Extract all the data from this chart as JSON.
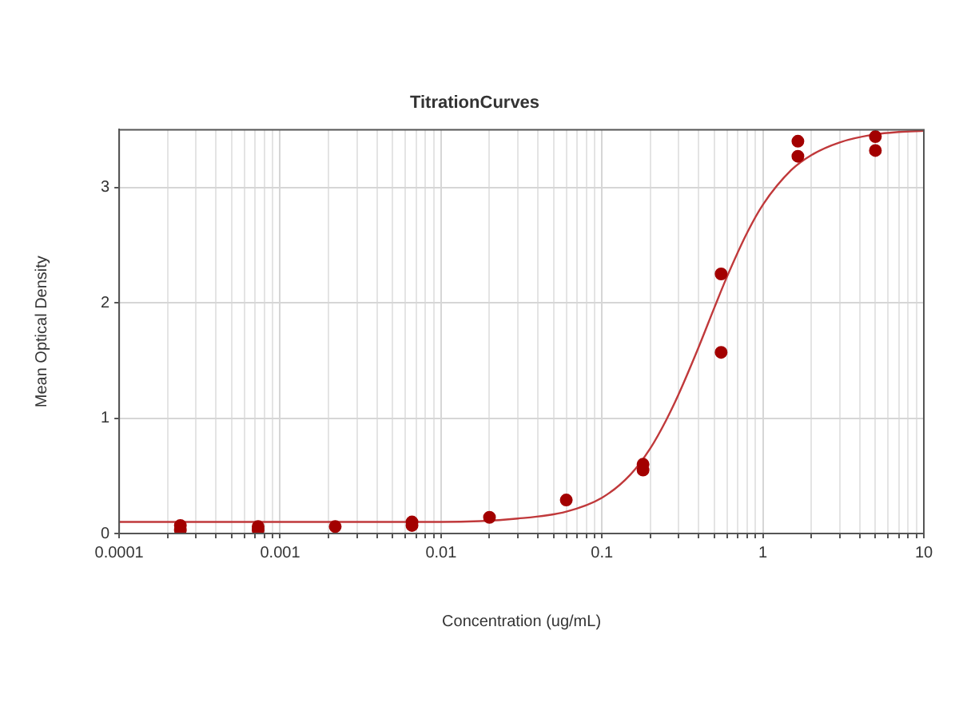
{
  "chart_data": {
    "type": "scatter",
    "title": "TitrationCurves",
    "xlabel": "Concentration (ug/mL)",
    "ylabel": "Mean Optical Density",
    "log": "x",
    "grid": true,
    "legend": false,
    "xlim": [
      0.0001,
      10
    ],
    "ylim": [
      0,
      3.5
    ],
    "xticks": [
      {
        "value": 0.0001,
        "label": "0.0001"
      },
      {
        "value": 0.0002,
        "label": null
      },
      {
        "value": 0.0003,
        "label": null
      },
      {
        "value": 0.0004,
        "label": null
      },
      {
        "value": 0.0005,
        "label": null
      },
      {
        "value": 0.0006,
        "label": null
      },
      {
        "value": 0.0007,
        "label": null
      },
      {
        "value": 0.0008,
        "label": null
      },
      {
        "value": 0.0009,
        "label": null
      },
      {
        "value": 0.001,
        "label": "0.001"
      },
      {
        "value": 0.002,
        "label": null
      },
      {
        "value": 0.003,
        "label": null
      },
      {
        "value": 0.004,
        "label": null
      },
      {
        "value": 0.005,
        "label": null
      },
      {
        "value": 0.006,
        "label": null
      },
      {
        "value": 0.007,
        "label": null
      },
      {
        "value": 0.008,
        "label": null
      },
      {
        "value": 0.009,
        "label": null
      },
      {
        "value": 0.01,
        "label": "0.01"
      },
      {
        "value": 0.02,
        "label": null
      },
      {
        "value": 0.03,
        "label": null
      },
      {
        "value": 0.04,
        "label": null
      },
      {
        "value": 0.05,
        "label": null
      },
      {
        "value": 0.06,
        "label": null
      },
      {
        "value": 0.07,
        "label": null
      },
      {
        "value": 0.08,
        "label": null
      },
      {
        "value": 0.09,
        "label": null
      },
      {
        "value": 0.1,
        "label": "0.1"
      },
      {
        "value": 0.2,
        "label": null
      },
      {
        "value": 0.3,
        "label": null
      },
      {
        "value": 0.4,
        "label": null
      },
      {
        "value": 0.5,
        "label": null
      },
      {
        "value": 0.6,
        "label": null
      },
      {
        "value": 0.7,
        "label": null
      },
      {
        "value": 0.8,
        "label": null
      },
      {
        "value": 0.9,
        "label": null
      },
      {
        "value": 1,
        "label": "1"
      },
      {
        "value": 2,
        "label": null
      },
      {
        "value": 3,
        "label": null
      },
      {
        "value": 4,
        "label": null
      },
      {
        "value": 5,
        "label": null
      },
      {
        "value": 6,
        "label": null
      },
      {
        "value": 7,
        "label": null
      },
      {
        "value": 8,
        "label": null
      },
      {
        "value": 9,
        "label": null
      },
      {
        "value": 10,
        "label": "10"
      }
    ],
    "yticks": [
      0,
      1,
      2,
      3
    ],
    "series": [
      {
        "type": "scatter",
        "color": "#a30000",
        "marker": "circle",
        "x": [
          0.00024,
          0.00024,
          0.00073,
          0.00073,
          0.0022,
          0.0066,
          0.0066,
          0.02,
          0.06,
          0.18,
          0.18,
          0.55,
          0.55,
          1.65,
          1.65,
          5,
          5
        ],
        "values": [
          0.07,
          0.03,
          0.06,
          0.03,
          0.06,
          0.1,
          0.07,
          0.14,
          0.29,
          0.6,
          0.55,
          2.25,
          1.57,
          3.4,
          3.27,
          3.44,
          3.32
        ]
      },
      {
        "type": "line",
        "color": "#c0393b",
        "marker": "none",
        "line_style": "solid",
        "x": [
          0.0001,
          0.001,
          0.01,
          0.03,
          0.06,
          0.1,
          0.15,
          0.2,
          0.25,
          0.3,
          0.4,
          0.5,
          0.6,
          0.8,
          1,
          1.5,
          2,
          3,
          5,
          7,
          10
        ],
        "values": [
          0.1,
          0.1,
          0.1,
          0.13,
          0.19,
          0.31,
          0.51,
          0.74,
          0.98,
          1.21,
          1.62,
          1.96,
          2.23,
          2.61,
          2.85,
          3.15,
          3.28,
          3.39,
          3.46,
          3.48,
          3.49
        ]
      }
    ]
  }
}
